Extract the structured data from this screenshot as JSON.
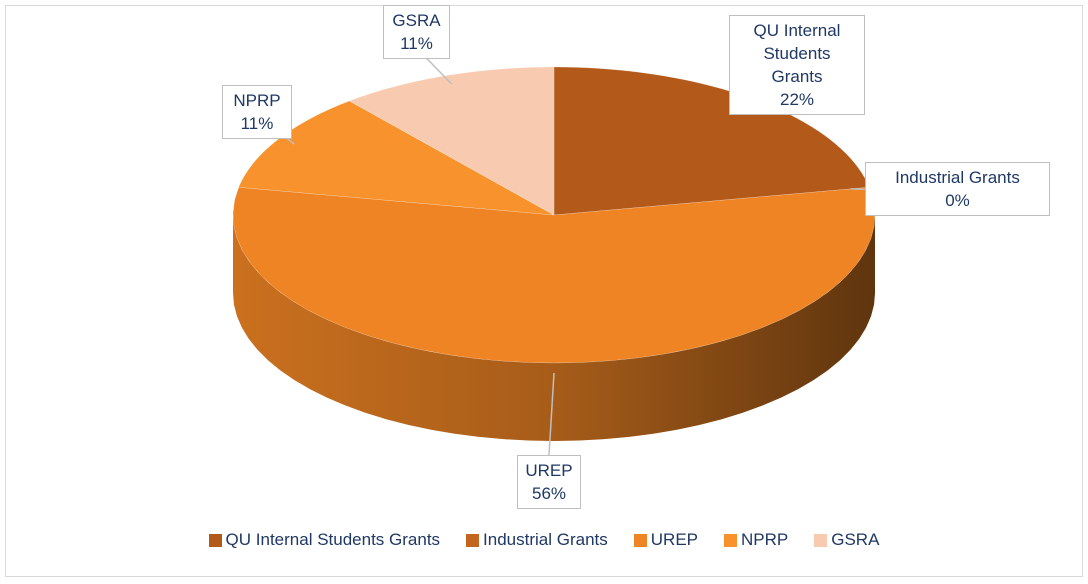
{
  "chart_data": {
    "type": "pie",
    "categories": [
      "QU Internal Students Grants",
      "Industrial Grants",
      "UREP",
      "NPRP",
      "GSRA"
    ],
    "values": [
      22,
      0,
      56,
      11,
      11
    ],
    "value_labels": [
      "22%",
      "0%",
      "56%",
      "11%",
      "11%"
    ],
    "colors": [
      "#b35a1a",
      "#c2651f",
      "#ee8424",
      "#f7922c",
      "#f8cbb1"
    ],
    "legend": "bottom"
  }
}
